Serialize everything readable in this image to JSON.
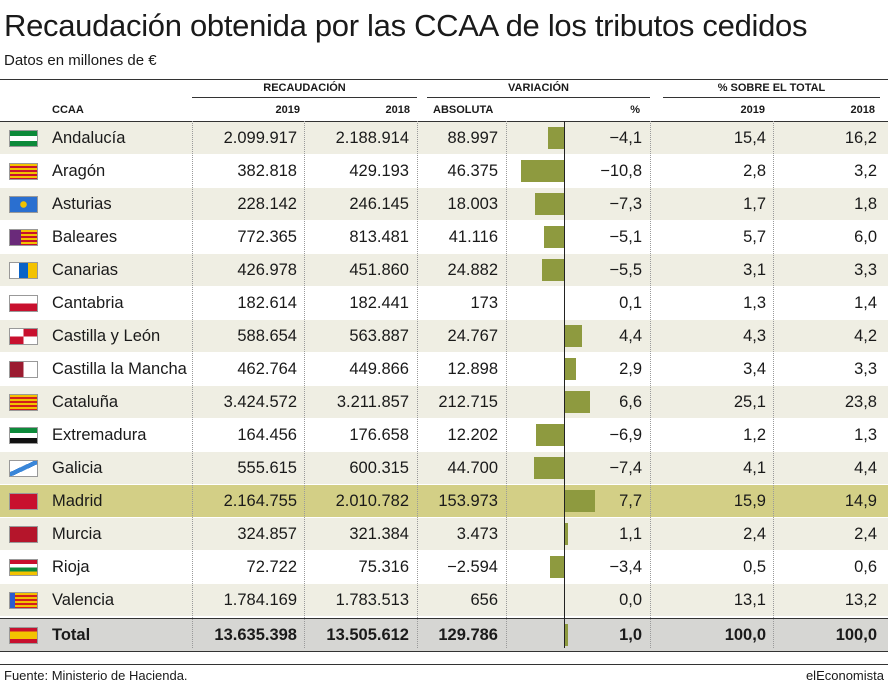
{
  "title": "Recaudación obtenida por las CCAA de los tributos cedidos",
  "subtitle": "Datos en millones de €",
  "headers": {
    "ccaa": "CCAA",
    "recaudacion": "RECAUDACIÓN",
    "variacion": "VARIACIÓN",
    "sobre_total": "% SOBRE EL TOTAL",
    "y2019": "2019",
    "y2018": "2018",
    "absoluta": "ABSOLUTA",
    "pct": "%"
  },
  "rows": [
    {
      "name": "Andalucía",
      "r2019": "2.099.917",
      "r2018": "2.188.914",
      "abs": "88.997",
      "pct": "−4,1",
      "pct_value": -4.1,
      "s2019": "15,4",
      "s2018": "16,2",
      "flag": "andalucia"
    },
    {
      "name": "Aragón",
      "r2019": "382.818",
      "r2018": "429.193",
      "abs": "46.375",
      "pct": "−10,8",
      "pct_value": -10.8,
      "s2019": "2,8",
      "s2018": "3,2",
      "flag": "aragon"
    },
    {
      "name": "Asturias",
      "r2019": "228.142",
      "r2018": "246.145",
      "abs": "18.003",
      "pct": "−7,3",
      "pct_value": -7.3,
      "s2019": "1,7",
      "s2018": "1,8",
      "flag": "asturias"
    },
    {
      "name": "Baleares",
      "r2019": "772.365",
      "r2018": "813.481",
      "abs": "41.116",
      "pct": "−5,1",
      "pct_value": -5.1,
      "s2019": "5,7",
      "s2018": "6,0",
      "flag": "baleares"
    },
    {
      "name": "Canarias",
      "r2019": "426.978",
      "r2018": "451.860",
      "abs": "24.882",
      "pct": "−5,5",
      "pct_value": -5.5,
      "s2019": "3,1",
      "s2018": "3,3",
      "flag": "canarias"
    },
    {
      "name": "Cantabria",
      "r2019": "182.614",
      "r2018": "182.441",
      "abs": "173",
      "pct": "0,1",
      "pct_value": 0.1,
      "s2019": "1,3",
      "s2018": "1,4",
      "flag": "cantabria"
    },
    {
      "name": "Castilla y León",
      "r2019": "588.654",
      "r2018": "563.887",
      "abs": "24.767",
      "pct": "4,4",
      "pct_value": 4.4,
      "s2019": "4,3",
      "s2018": "4,2",
      "flag": "cyl"
    },
    {
      "name": "Castilla la Mancha",
      "r2019": "462.764",
      "r2018": "449.866",
      "abs": "12.898",
      "pct": "2,9",
      "pct_value": 2.9,
      "s2019": "3,4",
      "s2018": "3,3",
      "flag": "clm"
    },
    {
      "name": "Cataluña",
      "r2019": "3.424.572",
      "r2018": "3.211.857",
      "abs": "212.715",
      "pct": "6,6",
      "pct_value": 6.6,
      "s2019": "25,1",
      "s2018": "23,8",
      "flag": "cataluna"
    },
    {
      "name": "Extremadura",
      "r2019": "164.456",
      "r2018": "176.658",
      "abs": "12.202",
      "pct": "−6,9",
      "pct_value": -6.9,
      "s2019": "1,2",
      "s2018": "1,3",
      "flag": "extremadura"
    },
    {
      "name": "Galicia",
      "r2019": "555.615",
      "r2018": "600.315",
      "abs": "44.700",
      "pct": "−7,4",
      "pct_value": -7.4,
      "s2019": "4,1",
      "s2018": "4,4",
      "flag": "galicia"
    },
    {
      "name": "Madrid",
      "r2019": "2.164.755",
      "r2018": "2.010.782",
      "abs": "153.973",
      "pct": "7,7",
      "pct_value": 7.7,
      "s2019": "15,9",
      "s2018": "14,9",
      "flag": "madrid",
      "highlight": true
    },
    {
      "name": "Murcia",
      "r2019": "324.857",
      "r2018": "321.384",
      "abs": "3.473",
      "pct": "1,1",
      "pct_value": 1.1,
      "s2019": "2,4",
      "s2018": "2,4",
      "flag": "murcia"
    },
    {
      "name": "Rioja",
      "r2019": "72.722",
      "r2018": "75.316",
      "abs": "−2.594",
      "pct": "−3,4",
      "pct_value": -3.4,
      "s2019": "0,5",
      "s2018": "0,6",
      "flag": "rioja"
    },
    {
      "name": "Valencia",
      "r2019": "1.784.169",
      "r2018": "1.783.513",
      "abs": "656",
      "pct": "0,0",
      "pct_value": 0.0,
      "s2019": "13,1",
      "s2018": "13,2",
      "flag": "valencia"
    }
  ],
  "total": {
    "name": "Total",
    "r2019": "13.635.398",
    "r2018": "13.505.612",
    "abs": "129.786",
    "pct": "1,0",
    "pct_value": 1.0,
    "s2019": "100,0",
    "s2018": "100,0",
    "flag": "espana"
  },
  "colors": {
    "bar": "#8e9a3f",
    "alt_row": "#efeee3",
    "highlight_row": "#d3cf86",
    "total_row": "#d6d6d3"
  },
  "footer": {
    "source": "Fuente: Ministerio de Hacienda.",
    "brand": "elEconomista"
  }
}
